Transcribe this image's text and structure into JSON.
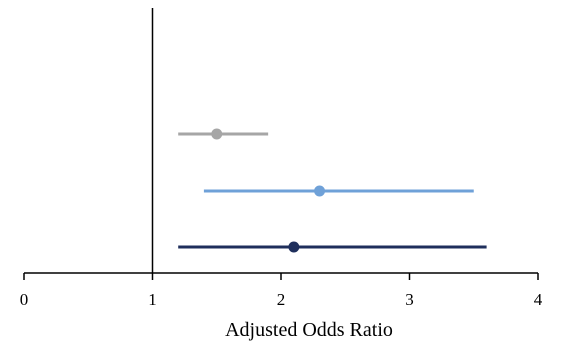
{
  "chart_data": {
    "type": "scatter",
    "subtype": "forest-plot",
    "title": "",
    "xlabel": "Adjusted Odds Ratio",
    "ylabel": "",
    "xlim": [
      0,
      4
    ],
    "xticks": [
      "0",
      "1",
      "2",
      "3",
      "4"
    ],
    "reference_line_x": 1,
    "grid": false,
    "legend": "none",
    "series": [
      {
        "estimate": 1.5,
        "lower": 1.2,
        "upper": 1.9,
        "color": "#a6a6a6"
      },
      {
        "estimate": 2.3,
        "lower": 1.4,
        "upper": 3.5,
        "color": "#6fa1d8"
      },
      {
        "estimate": 2.1,
        "lower": 1.2,
        "upper": 3.6,
        "color": "#1f2f5c"
      }
    ]
  }
}
